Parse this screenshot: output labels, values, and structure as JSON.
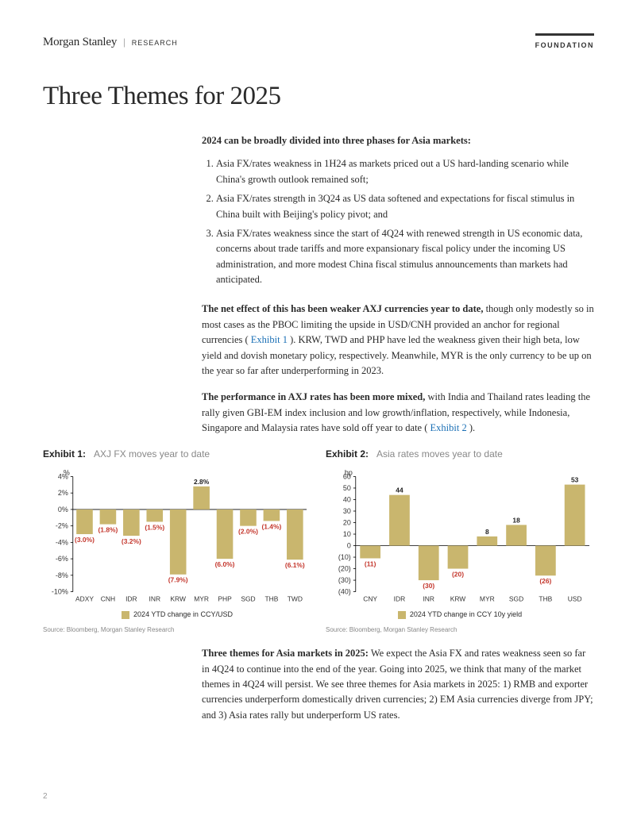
{
  "header": {
    "brand_name": "Morgan Stanley",
    "brand_sub": "RESEARCH",
    "foundation": "FOUNDATION"
  },
  "title": "Three Themes for 2025",
  "intro_bold": "2024 can be broadly divided into three phases for Asia markets:",
  "list": [
    "Asia FX/rates weakness in 1H24 as markets priced out a US hard-landing scenario while China's growth outlook remained soft;",
    "Asia FX/rates strength in 3Q24 as US data softened and expectations for fiscal stimulus in China built with Beijing's policy pivot; and",
    "Asia FX/rates weakness since the start of 4Q24 with renewed strength in US economic data, concerns about trade tariffs and more expansionary fiscal policy under the incoming US administration, and more modest China fiscal stimulus announcements than markets had anticipated."
  ],
  "para2_bold": "The net effect of this has been weaker AXJ currencies year to date,",
  "para2_rest_a": " though only modestly so in most cases as the PBOC limiting the upside in USD/CNH provided an anchor for regional currencies ( ",
  "para2_link": "Exhibit 1",
  "para2_rest_b": " ). KRW, TWD and PHP have led the weakness given their high beta, low yield and dovish monetary policy, respectively. Meanwhile, MYR is the only currency to be up on the year so far after underperforming in 2023.",
  "para3_bold": "The performance in AXJ rates has been more mixed,",
  "para3_rest_a": " with India and Thailand rates leading the rally given GBI-EM index inclusion and low growth/inflation, respectively, while Indonesia, Singapore and Malaysia rates have sold off year to date ( ",
  "para3_link": "Exhibit 2",
  "para3_rest_b": " ).",
  "para4_bold": "Three themes for Asia markets in 2025:",
  "para4_rest": " We expect the Asia FX and rates weakness seen so far in 4Q24 to continue into the end of the year. Going into 2025, we think that many of the market themes in 4Q24 will persist. We see three themes for Asia markets in 2025: 1) RMB and exporter currencies underperform domestically driven currencies; 2) EM Asia currencies diverge from JPY; and 3) Asia rates rally but underperform US rates.",
  "exhibit1": {
    "label": "Exhibit 1:",
    "desc": "AXJ FX moves year to date",
    "type": "bar",
    "unit": "%",
    "categories": [
      "ADXY",
      "CNH",
      "IDR",
      "INR",
      "KRW",
      "MYR",
      "PHP",
      "SGD",
      "THB",
      "TWD"
    ],
    "values": [
      -3.0,
      -1.8,
      -3.2,
      -1.5,
      -7.9,
      2.8,
      -6.0,
      -2.0,
      -1.4,
      -6.1
    ],
    "value_labels": [
      "(3.0%)",
      "(1.8%)",
      "(3.2%)",
      "(1.5%)",
      "(7.9%)",
      "2.8%",
      "(6.0%)",
      "(2.0%)",
      "(1.4%)",
      "(6.1%)"
    ],
    "bar_color": "#c9b66e",
    "ylim": [
      -10,
      4
    ],
    "yticks": [
      -10,
      -8,
      -6,
      -4,
      -2,
      0,
      2,
      4
    ],
    "ytick_labels": [
      "-10%",
      "-8%",
      "-6%",
      "-4%",
      "-2%",
      "0%",
      "2%",
      "4%"
    ],
    "legend": "2024 YTD change in CCY/USD",
    "source": "Source: Bloomberg, Morgan Stanley Research",
    "neg_color": "#c4372d",
    "pos_color": "#222222",
    "background": "#ffffff"
  },
  "exhibit2": {
    "label": "Exhibit 2:",
    "desc": "Asia rates moves year to date",
    "type": "bar",
    "unit": "bp",
    "categories": [
      "CNY",
      "IDR",
      "INR",
      "KRW",
      "MYR",
      "SGD",
      "THB",
      "USD"
    ],
    "values": [
      -11,
      44,
      -30,
      -20,
      8,
      18,
      -26,
      53
    ],
    "value_labels": [
      "(11)",
      "44",
      "(30)",
      "(20)",
      "8",
      "18",
      "(26)",
      "53"
    ],
    "bar_color": "#c9b66e",
    "ylim": [
      -40,
      60
    ],
    "yticks": [
      -40,
      -30,
      -20,
      -10,
      0,
      10,
      20,
      30,
      40,
      50,
      60
    ],
    "ytick_labels": [
      "(40)",
      "(30)",
      "(20)",
      "(10)",
      "0",
      "10",
      "20",
      "30",
      "40",
      "50",
      "60"
    ],
    "ytick_neg": [
      true,
      true,
      true,
      true,
      false,
      false,
      false,
      false,
      false,
      false,
      false
    ],
    "legend": "2024 YTD change in CCY 10y yield",
    "source": "Source: Bloomberg, Morgan Stanley Research",
    "neg_color": "#c4372d",
    "pos_color": "#222222",
    "background": "#ffffff"
  },
  "page_num": "2"
}
